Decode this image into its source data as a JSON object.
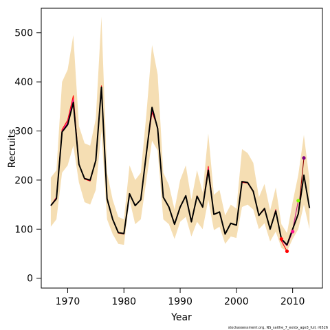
{
  "chart_data": {
    "type": "line",
    "xlabel": "Year",
    "ylabel": "Recruits",
    "xlim": [
      1965.3,
      2015.3
    ],
    "ylim": [
      -20,
      550
    ],
    "xticks": [
      1970,
      1980,
      1990,
      2000,
      2010
    ],
    "yticks": [
      0,
      100,
      200,
      300,
      400,
      500
    ],
    "grid": false,
    "credit": "stockassessment.org, NS_saithe_7_exidx_age3_full, r6526",
    "colors": {
      "band": "#f5deb3",
      "main_line": "#000000",
      "retro_lines": [
        "#ff0000",
        "#ff1493",
        "#c71585",
        "#8b0000",
        "#ff4500"
      ],
      "retro_points": [
        "#ff0000",
        "#ff1493",
        "#7fff00",
        "#800080",
        "#ff0000"
      ]
    },
    "band": {
      "x": [
        1967,
        1968,
        1969,
        1970,
        1971,
        1972,
        1973,
        1974,
        1975,
        1976,
        1977,
        1978,
        1979,
        1980,
        1981,
        1982,
        1983,
        1984,
        1985,
        1986,
        1987,
        1988,
        1989,
        1990,
        1991,
        1992,
        1993,
        1994,
        1995,
        1996,
        1997,
        1998,
        1999,
        2000,
        2001,
        2002,
        2003,
        2004,
        2005,
        2006,
        2007,
        2008,
        2009,
        2010,
        2011,
        2012,
        2013
      ],
      "lower": [
        105,
        120,
        215,
        230,
        270,
        195,
        155,
        150,
        180,
        300,
        120,
        90,
        70,
        68,
        160,
        110,
        120,
        200,
        280,
        260,
        120,
        110,
        80,
        115,
        125,
        85,
        115,
        100,
        160,
        98,
        105,
        70,
        85,
        82,
        145,
        150,
        140,
        100,
        112,
        75,
        95,
        62,
        55,
        80,
        100,
        150,
        100
      ],
      "upper": [
        205,
        220,
        400,
        425,
        495,
        310,
        275,
        270,
        325,
        533,
        215,
        160,
        125,
        120,
        230,
        200,
        215,
        335,
        475,
        415,
        215,
        190,
        140,
        200,
        230,
        160,
        220,
        175,
        295,
        170,
        180,
        128,
        150,
        142,
        263,
        255,
        235,
        165,
        192,
        138,
        185,
        110,
        92,
        155,
        210,
        292,
        200
      ]
    },
    "series": [
      {
        "x": [
          1967,
          1968,
          1969,
          1970,
          1971,
          1972,
          1973,
          1974,
          1975,
          1976,
          1977,
          1978,
          1979,
          1980,
          1981,
          1982,
          1983,
          1984,
          1985,
          1986,
          1987,
          1988,
          1989,
          1990,
          1991,
          1992,
          1993,
          1994,
          1995,
          1996,
          1997,
          1998,
          1999,
          2000,
          2001,
          2002,
          2003,
          2004,
          2005,
          2006,
          2007,
          2008,
          2009,
          2010,
          2011,
          2012,
          2013
        ],
        "values": [
          148,
          162,
          298,
          313,
          358,
          232,
          203,
          200,
          240,
          389,
          162,
          120,
          93,
          91,
          172,
          148,
          160,
          255,
          348,
          305,
          165,
          145,
          110,
          145,
          168,
          115,
          167,
          145,
          220,
          130,
          135,
          90,
          112,
          108,
          197,
          195,
          177,
          128,
          142,
          100,
          137,
          80,
          68,
          100,
          131,
          210,
          143
        ]
      },
      {
        "x": [
          1967,
          1968,
          1969,
          1970,
          1971,
          1972,
          1973,
          1974,
          1975,
          1976,
          1977,
          1978,
          1979,
          1980,
          1981,
          1982,
          1983,
          1984,
          1985,
          1986,
          1987,
          1988,
          1989,
          1990,
          1991,
          1992,
          1993,
          1994,
          1995,
          1996,
          1997,
          1998,
          1999,
          2000,
          2001,
          2002,
          2003,
          2004,
          2005,
          2006,
          2007,
          2008,
          2009
        ],
        "values": [
          148,
          165,
          303,
          322,
          372,
          233,
          202,
          198,
          240,
          392,
          163,
          120,
          92,
          90,
          172,
          148,
          160,
          257,
          338,
          308,
          165,
          145,
          111,
          146,
          168,
          116,
          168,
          145,
          228,
          130,
          135,
          90,
          112,
          108,
          195,
          194,
          176,
          128,
          140,
          100,
          140,
          76,
          55
        ]
      },
      {
        "x": [
          1967,
          1968,
          1969,
          1970,
          1971,
          1972,
          1973,
          1974,
          1975,
          1976,
          1977,
          1978,
          1979,
          1980,
          1981,
          1982,
          1983,
          1984,
          1985,
          1986,
          1987,
          1988,
          1989,
          1990,
          1991,
          1992,
          1993,
          1994,
          1995,
          1996,
          1997,
          1998,
          1999,
          2000,
          2001,
          2002,
          2003,
          2004,
          2005,
          2006,
          2007,
          2008,
          2009,
          2010
        ],
        "values": [
          148,
          164,
          300,
          318,
          365,
          232,
          203,
          199,
          240,
          390,
          162,
          120,
          93,
          91,
          172,
          148,
          160,
          256,
          342,
          306,
          165,
          145,
          110,
          145,
          168,
          115,
          167,
          145,
          224,
          130,
          135,
          90,
          112,
          108,
          196,
          195,
          177,
          128,
          141,
          100,
          139,
          78,
          66,
          95
        ]
      },
      {
        "x": [
          1967,
          1968,
          1969,
          1970,
          1971,
          1972,
          1973,
          1974,
          1975,
          1976,
          1977,
          1978,
          1979,
          1980,
          1981,
          1982,
          1983,
          1984,
          1985,
          1986,
          1987,
          1988,
          1989,
          1990,
          1991,
          1992,
          1993,
          1994,
          1995,
          1996,
          1997,
          1998,
          1999,
          2000,
          2001,
          2002,
          2003,
          2004,
          2005,
          2006,
          2007,
          2008,
          2009,
          2010,
          2011
        ],
        "values": [
          148,
          163,
          299,
          315,
          360,
          232,
          203,
          200,
          240,
          389,
          162,
          120,
          93,
          91,
          172,
          148,
          160,
          255,
          346,
          305,
          165,
          145,
          110,
          145,
          168,
          115,
          167,
          145,
          221,
          130,
          135,
          90,
          112,
          108,
          197,
          195,
          177,
          128,
          142,
          100,
          138,
          80,
          67,
          98,
          158
        ]
      },
      {
        "x": [
          1967,
          1968,
          1969,
          1970,
          1971,
          1972,
          1973,
          1974,
          1975,
          1976,
          1977,
          1978,
          1979,
          1980,
          1981,
          1982,
          1983,
          1984,
          1985,
          1986,
          1987,
          1988,
          1989,
          1990,
          1991,
          1992,
          1993,
          1994,
          1995,
          1996,
          1997,
          1998,
          1999,
          2000,
          2001,
          2002,
          2003,
          2004,
          2005,
          2006,
          2007,
          2008,
          2009,
          2010,
          2011,
          2012
        ],
        "values": [
          148,
          162,
          298,
          314,
          359,
          232,
          203,
          200,
          240,
          389,
          162,
          120,
          93,
          91,
          172,
          148,
          160,
          255,
          347,
          305,
          165,
          145,
          110,
          145,
          168,
          115,
          167,
          145,
          220,
          130,
          135,
          90,
          112,
          108,
          197,
          195,
          177,
          128,
          142,
          100,
          137,
          80,
          68,
          100,
          132,
          245
        ]
      }
    ],
    "retro_endpoints": {
      "x": [
        2009,
        2010,
        2011,
        2012,
        2008
      ],
      "values": [
        55,
        95,
        158,
        245,
        80
      ]
    }
  }
}
